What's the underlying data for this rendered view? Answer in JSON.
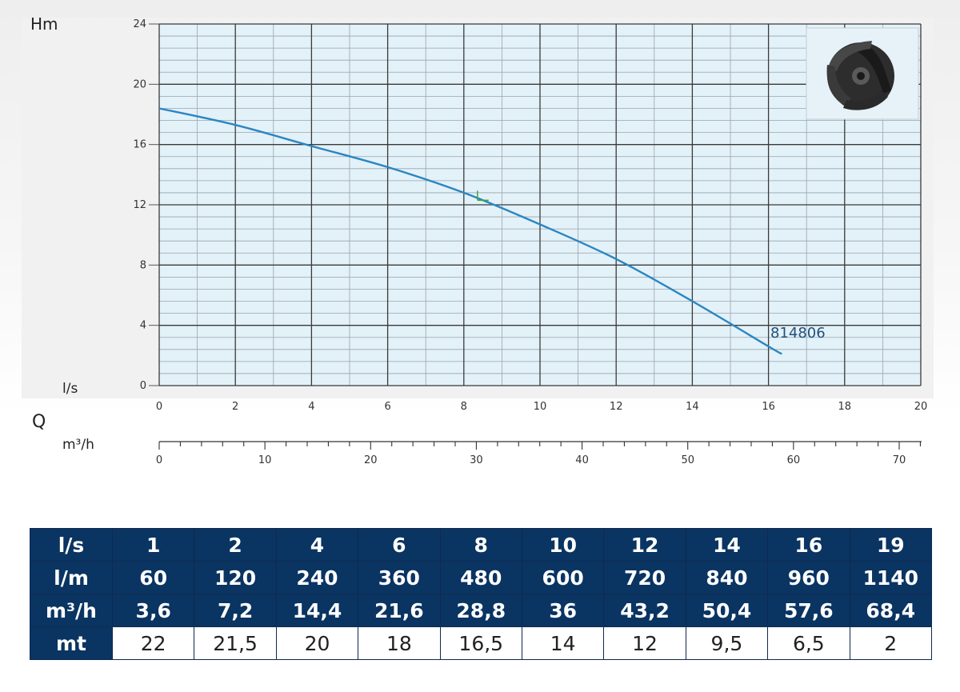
{
  "chart_data": {
    "type": "line",
    "ylabel": "Hm",
    "xlabel": "l/s",
    "q_label": "Q",
    "x2label": "m³/h",
    "xlim": [
      0,
      20
    ],
    "ylim": [
      0,
      24
    ],
    "x2lim": [
      0,
      70
    ],
    "y_ticks": [
      "24",
      "20",
      "16",
      "12",
      "8",
      "4",
      "0"
    ],
    "x_ticks": [
      "0",
      "2",
      "4",
      "6",
      "8",
      "10",
      "12",
      "14",
      "16",
      "18",
      "20"
    ],
    "x2_ticks": [
      "0",
      "10",
      "20",
      "30",
      "40",
      "50",
      "60",
      "70"
    ],
    "grid": true,
    "series": [
      {
        "name": "814806",
        "color": "#2a86c2",
        "x": [
          0,
          2,
          4,
          6,
          8,
          10,
          12,
          14,
          16,
          16.35
        ],
        "y": [
          18.4,
          17.3,
          15.9,
          14.5,
          12.8,
          10.7,
          8.4,
          5.6,
          2.6,
          2.1
        ]
      }
    ],
    "marker": {
      "x": 8.4,
      "y": 12.3,
      "color": "#3aa83a"
    }
  },
  "impeller_icon": "impeller-icon",
  "table": {
    "rows": [
      {
        "head": "l/s",
        "cells": [
          "1",
          "2",
          "4",
          "6",
          "8",
          "10",
          "12",
          "14",
          "16",
          "19"
        ]
      },
      {
        "head": "l/m",
        "cells": [
          "60",
          "120",
          "240",
          "360",
          "480",
          "600",
          "720",
          "840",
          "960",
          "1140"
        ]
      },
      {
        "head": "m³/h",
        "cells": [
          "3,6",
          "7,2",
          "14,4",
          "21,6",
          "28,8",
          "36",
          "43,2",
          "50,4",
          "57,6",
          "68,4"
        ]
      },
      {
        "head": "mt",
        "cells": [
          "22",
          "21,5",
          "20",
          "18",
          "16,5",
          "14",
          "12",
          "9,5",
          "6,5",
          "2"
        ]
      }
    ]
  }
}
